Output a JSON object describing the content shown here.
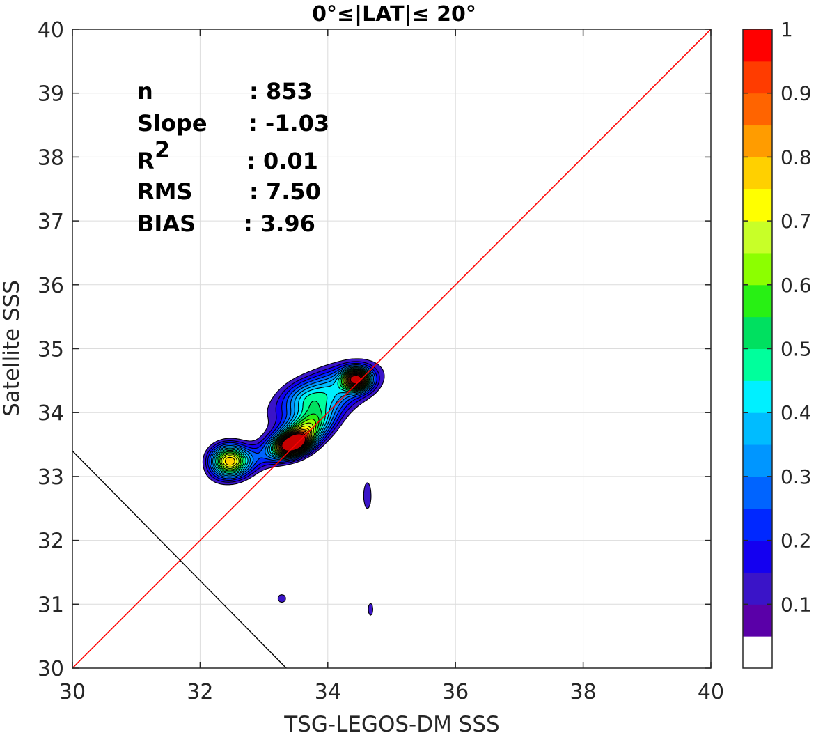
{
  "chart_data": {
    "type": "contour",
    "title": "0°≤|LAT|≤ 20°",
    "xlabel": "TSG-LEGOS-DM SSS",
    "ylabel": "Satellite SSS",
    "xlim": [
      30,
      40
    ],
    "ylim": [
      30,
      40
    ],
    "xticks": [
      30,
      32,
      34,
      36,
      38,
      40
    ],
    "yticks": [
      30,
      31,
      32,
      33,
      34,
      35,
      36,
      37,
      38,
      39,
      40
    ],
    "grid": true,
    "stats": [
      {
        "label": "n",
        "value": ": 853"
      },
      {
        "label": "Slope",
        "value": ": -1.03"
      },
      {
        "label": "R",
        "sup": "2",
        "value": ": 0.01"
      },
      {
        "label": "RMS",
        "value": ": 7.50"
      },
      {
        "label": "BIAS",
        "value": ": 3.96"
      }
    ],
    "reference_line": {
      "name": "1:1",
      "color": "#ff0000",
      "x": [
        30,
        40
      ],
      "y": [
        30,
        40
      ]
    },
    "regression_line": {
      "color": "#000000",
      "x": [
        30,
        33.35
      ],
      "y": [
        33.4,
        30
      ]
    },
    "density_peaks": [
      {
        "x": 32.45,
        "y": 33.25,
        "level": 0.75
      },
      {
        "x": 33.45,
        "y": 33.5,
        "level": 0.95
      },
      {
        "x": 33.6,
        "y": 33.75,
        "level": 0.75
      },
      {
        "x": 34.45,
        "y": 34.52,
        "level": 0.9
      },
      {
        "x": 33.65,
        "y": 34.2,
        "level": 0.3
      },
      {
        "x": 34.62,
        "y": 32.7,
        "level": 0.1
      },
      {
        "x": 33.3,
        "y": 31.1,
        "level": 0.1
      },
      {
        "x": 34.68,
        "y": 30.9,
        "level": 0.1
      }
    ],
    "colorbar": {
      "ticks": [
        "0.1",
        "0.2",
        "0.3",
        "0.4",
        "0.5",
        "0.6",
        "0.7",
        "0.8",
        "0.9",
        "1"
      ],
      "levels": [
        0,
        0.05,
        0.1,
        0.15,
        0.2,
        0.25,
        0.3,
        0.35,
        0.4,
        0.45,
        0.5,
        0.55,
        0.6,
        0.65,
        0.7,
        0.75,
        0.8,
        0.85,
        0.9,
        0.95,
        1.0
      ],
      "colors": [
        "#ffffff",
        "#5a00a8",
        "#3a14c8",
        "#1400f0",
        "#0028ff",
        "#0064ff",
        "#0096ff",
        "#00bcff",
        "#00f0ff",
        "#00ff9c",
        "#00e060",
        "#28f014",
        "#8cff00",
        "#c8ff28",
        "#ffff00",
        "#ffd000",
        "#ff9c00",
        "#ff6400",
        "#ff3c00",
        "#ff0000",
        "#c80000",
        "#800000"
      ]
    }
  }
}
